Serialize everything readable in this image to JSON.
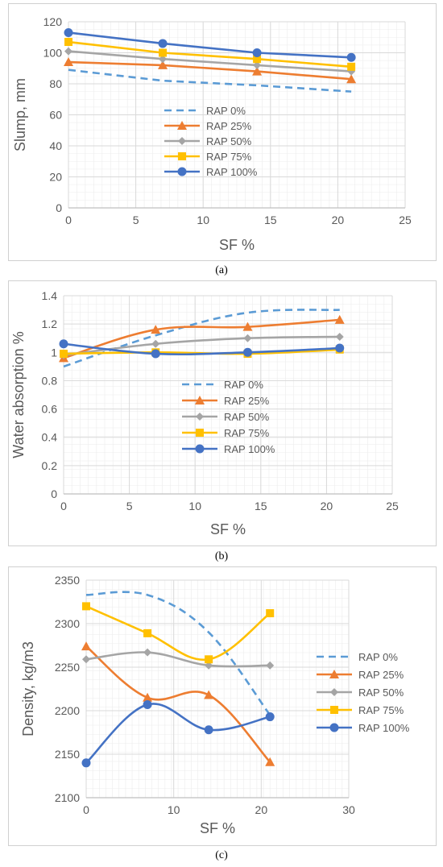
{
  "colors": {
    "RAP 0%": "#5b9bd5",
    "RAP 25%": "#ed7d31",
    "RAP 50%": "#a5a5a5",
    "RAP 75%": "#ffc000",
    "RAP 100%": "#4472c4",
    "grid": "#d9d9d9",
    "axis_text": "#595959"
  },
  "chart_data": [
    {
      "type": "line",
      "caption": "(a)",
      "xlabel": "SF %",
      "ylabel": "Slump, mm",
      "xlim": [
        0,
        25
      ],
      "ylim": [
        0,
        120
      ],
      "xticks": [
        0,
        5,
        10,
        15,
        20,
        25
      ],
      "yticks": [
        0,
        20,
        40,
        60,
        80,
        100,
        120
      ],
      "grid": true,
      "smooth": false,
      "legend_position": "center",
      "series": [
        {
          "name": "RAP 0%",
          "marker": "none",
          "dash": true,
          "x": [
            0,
            7,
            14,
            21
          ],
          "y": [
            89,
            82,
            79,
            75
          ]
        },
        {
          "name": "RAP 25%",
          "marker": "triangle",
          "dash": false,
          "x": [
            0,
            7,
            14,
            21
          ],
          "y": [
            94,
            92,
            88,
            83
          ]
        },
        {
          "name": "RAP 50%",
          "marker": "diamond",
          "dash": false,
          "x": [
            0,
            7,
            14,
            21
          ],
          "y": [
            101,
            96,
            92,
            88
          ]
        },
        {
          "name": "RAP 75%",
          "marker": "square",
          "dash": false,
          "x": [
            0,
            7,
            14,
            21
          ],
          "y": [
            107,
            100,
            96,
            91
          ]
        },
        {
          "name": "RAP 100%",
          "marker": "circle",
          "dash": false,
          "x": [
            0,
            7,
            14,
            21
          ],
          "y": [
            113,
            106,
            100,
            97
          ]
        }
      ]
    },
    {
      "type": "line",
      "caption": "(b)",
      "xlabel": "SF %",
      "ylabel": "Water absorption %",
      "xlim": [
        0,
        25
      ],
      "ylim": [
        0,
        1.4
      ],
      "xticks": [
        0,
        5,
        10,
        15,
        20,
        25
      ],
      "yticks": [
        0,
        0.2,
        0.4,
        0.6,
        0.8,
        1,
        1.2,
        1.4
      ],
      "grid": true,
      "smooth": true,
      "legend_position": "center",
      "series": [
        {
          "name": "RAP 0%",
          "marker": "none",
          "dash": true,
          "x": [
            0,
            7,
            14,
            21
          ],
          "y": [
            0.9,
            1.12,
            1.28,
            1.3
          ]
        },
        {
          "name": "RAP 25%",
          "marker": "triangle",
          "dash": false,
          "x": [
            0,
            7,
            14,
            21
          ],
          "y": [
            0.96,
            1.16,
            1.18,
            1.23
          ]
        },
        {
          "name": "RAP 50%",
          "marker": "diamond",
          "dash": false,
          "x": [
            0,
            7,
            14,
            21
          ],
          "y": [
            0.98,
            1.06,
            1.1,
            1.11
          ]
        },
        {
          "name": "RAP 75%",
          "marker": "square",
          "dash": false,
          "x": [
            0,
            7,
            14,
            21
          ],
          "y": [
            0.99,
            1.0,
            0.99,
            1.02
          ]
        },
        {
          "name": "RAP 100%",
          "marker": "circle",
          "dash": false,
          "x": [
            0,
            7,
            14,
            21
          ],
          "y": [
            1.06,
            0.99,
            1.0,
            1.03
          ]
        }
      ]
    },
    {
      "type": "line",
      "caption": "(c)",
      "xlabel": "SF %",
      "ylabel": "Density, kg/m3",
      "xlim": [
        0,
        30
      ],
      "ylim": [
        2100,
        2350
      ],
      "xticks": [
        0,
        10,
        20,
        30
      ],
      "yticks": [
        2100,
        2150,
        2200,
        2250,
        2300,
        2350
      ],
      "grid": true,
      "smooth": true,
      "legend_position": "right",
      "series": [
        {
          "name": "RAP 0%",
          "marker": "none",
          "dash": true,
          "x": [
            0,
            7,
            14,
            21
          ],
          "y": [
            2333,
            2333,
            2290,
            2195
          ]
        },
        {
          "name": "RAP 25%",
          "marker": "triangle",
          "dash": false,
          "x": [
            0,
            7,
            14,
            21
          ],
          "y": [
            2274,
            2215,
            2218,
            2141
          ]
        },
        {
          "name": "RAP 50%",
          "marker": "diamond",
          "dash": false,
          "x": [
            0,
            7,
            14,
            21
          ],
          "y": [
            2259,
            2267,
            2252,
            2252
          ]
        },
        {
          "name": "RAP 75%",
          "marker": "square",
          "dash": false,
          "x": [
            0,
            7,
            14,
            21
          ],
          "y": [
            2320,
            2289,
            2259,
            2312
          ]
        },
        {
          "name": "RAP 100%",
          "marker": "circle",
          "dash": false,
          "x": [
            0,
            7,
            14,
            21
          ],
          "y": [
            2140,
            2207,
            2178,
            2193
          ]
        }
      ]
    }
  ]
}
